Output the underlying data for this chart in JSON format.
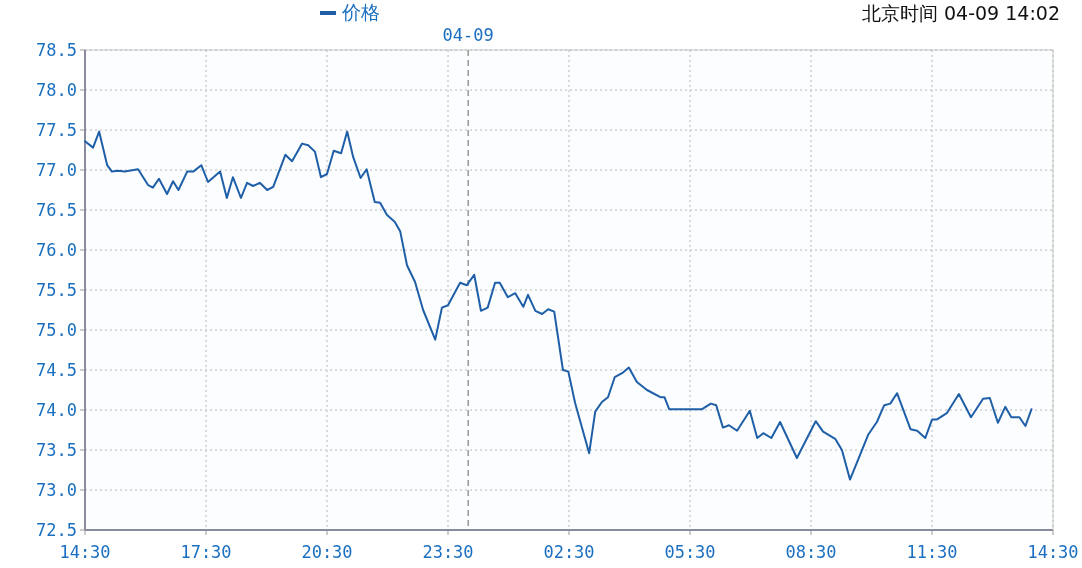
{
  "chart_data": {
    "type": "line",
    "annotations": [
      "北京时间 04-09 14:02"
    ],
    "x": [
      "--04-08T14:30",
      "--04-08T14:42",
      "--04-08T14:51",
      "--04-08T15:03",
      "--04-08T15:10",
      "--04-08T15:19",
      "--04-08T15:29",
      "--04-08T15:49",
      "--04-08T16:04",
      "--04-08T16:11",
      "--04-08T16:20",
      "--04-08T16:32",
      "--04-08T16:41",
      "--04-08T16:49",
      "--04-08T17:02",
      "--04-08T17:11",
      "--04-08T17:23",
      "--04-08T17:33",
      "--04-08T17:51",
      "--04-08T18:01",
      "--04-08T18:10",
      "--04-08T18:22",
      "--04-08T18:31",
      "--04-08T18:40",
      "--04-08T18:50",
      "--04-08T19:01",
      "--04-08T19:10",
      "--04-08T19:28",
      "--04-08T19:38",
      "--04-08T19:53",
      "--04-08T20:02",
      "--04-08T20:12",
      "--04-08T20:21",
      "--04-08T20:30",
      "--04-08T20:40",
      "--04-08T20:51",
      "--04-08T21:00",
      "--04-08T21:09",
      "--04-08T21:20",
      "--04-08T21:29",
      "--04-08T21:41",
      "--04-08T21:49",
      "--04-08T21:59",
      "--04-08T22:11",
      "--04-08T22:19",
      "--04-08T22:29",
      "--04-08T22:41",
      "--04-08T22:53",
      "--04-08T23:11",
      "--04-08T23:21",
      "--04-08T23:30",
      "--04-08T23:48",
      "--04-08T23:58",
      "--04-09T00:09",
      "--04-09T00:19",
      "--04-09T00:29",
      "--04-09T00:40",
      "--04-09T00:47",
      "--04-09T00:59",
      "--04-09T01:10",
      "--04-09T01:22",
      "--04-09T01:29",
      "--04-09T01:40",
      "--04-09T01:50",
      "--04-09T01:59",
      "--04-09T02:08",
      "--04-09T02:21",
      "--04-09T02:29",
      "--04-09T02:39",
      "--04-09T03:00",
      "--04-09T03:09",
      "--04-09T03:19",
      "--04-09T03:28",
      "--04-09T03:38",
      "--04-09T03:49",
      "--04-09T03:59",
      "--04-09T04:11",
      "--04-09T04:26",
      "--04-09T04:46",
      "--04-09T04:52",
      "--04-09T04:59",
      "--04-09T05:48",
      "--04-09T06:01",
      "--04-09T06:09",
      "--04-09T06:19",
      "--04-09T06:28",
      "--04-09T06:40",
      "--04-09T06:59",
      "--04-09T07:10",
      "--04-09T07:19",
      "--04-09T07:31",
      "--04-09T07:44",
      "--04-09T08:09",
      "--04-09T08:37",
      "--04-09T08:48",
      "--04-09T09:06",
      "--04-09T09:16",
      "--04-09T09:28",
      "--04-09T09:43",
      "--04-09T09:55",
      "--04-09T10:08",
      "--04-09T10:19",
      "--04-09T10:28",
      "--04-09T10:38",
      "--04-09T10:58",
      "--04-09T11:08",
      "--04-09T11:20",
      "--04-09T11:30",
      "--04-09T11:37",
      "--04-09T11:52",
      "--04-09T12:10",
      "--04-09T12:28",
      "--04-09T12:46",
      "--04-09T12:56",
      "--04-09T13:08",
      "--04-09T13:19",
      "--04-09T13:28",
      "--04-09T13:40",
      "--04-09T13:49",
      "--04-09T13:58"
    ],
    "series": [
      {
        "name": "价格",
        "color": "#1f5fa8",
        "values": [
          77.36,
          77.28,
          77.48,
          77.06,
          76.98,
          76.99,
          76.98,
          77.01,
          76.81,
          76.78,
          76.89,
          76.7,
          76.86,
          76.75,
          76.98,
          76.98,
          77.06,
          76.85,
          76.98,
          76.65,
          76.91,
          76.65,
          76.84,
          76.8,
          76.84,
          76.75,
          76.79,
          77.19,
          77.11,
          77.33,
          77.31,
          77.23,
          76.91,
          76.95,
          77.24,
          77.21,
          77.48,
          77.16,
          76.9,
          77.01,
          76.6,
          76.59,
          76.44,
          76.35,
          76.23,
          75.81,
          75.6,
          75.25,
          74.88,
          75.28,
          75.31,
          75.59,
          75.56,
          75.69,
          75.24,
          75.28,
          75.59,
          75.59,
          75.41,
          75.46,
          75.29,
          75.44,
          75.24,
          75.2,
          75.26,
          75.23,
          74.5,
          74.48,
          74.09,
          73.46,
          73.98,
          74.1,
          74.16,
          74.41,
          74.46,
          74.53,
          74.35,
          74.25,
          74.16,
          74.16,
          74.01,
          74.01,
          74.08,
          74.06,
          73.78,
          73.81,
          73.74,
          73.99,
          73.65,
          73.71,
          73.65,
          73.85,
          73.4,
          73.86,
          73.73,
          73.64,
          73.5,
          73.13,
          73.44,
          73.69,
          73.85,
          74.06,
          74.08,
          74.21,
          73.76,
          73.74,
          73.65,
          73.88,
          73.88,
          73.96,
          74.2,
          73.91,
          74.14,
          74.15,
          73.84,
          74.04,
          73.91,
          73.91,
          73.8,
          74.01
        ]
      }
    ],
    "xlim": [
      "--04-08T14:30",
      "--04-09T14:30"
    ],
    "xticks": [
      {
        "value": "--04-08T14:30",
        "label": "14:30"
      },
      {
        "value": "--04-08T17:30",
        "label": "17:30"
      },
      {
        "value": "--04-08T20:30",
        "label": "20:30"
      },
      {
        "value": "--04-08T23:30",
        "label": "23:30"
      },
      {
        "value": "--04-09T02:30",
        "label": "02:30"
      },
      {
        "value": "--04-09T05:30",
        "label": "05:30"
      },
      {
        "value": "--04-09T08:30",
        "label": "08:30"
      },
      {
        "value": "--04-09T11:30",
        "label": "11:30"
      },
      {
        "value": "--04-09T14:30",
        "label": "14:30"
      }
    ],
    "ylim": [
      72.5,
      78.5
    ],
    "yticks": [
      {
        "value": 72.5,
        "label": "72.5"
      },
      {
        "value": 73,
        "label": "73.0"
      },
      {
        "value": 73.5,
        "label": "73.5"
      },
      {
        "value": 74,
        "label": "74.0"
      },
      {
        "value": 74.5,
        "label": "74.5"
      },
      {
        "value": 75,
        "label": "75.0"
      },
      {
        "value": 75.5,
        "label": "75.5"
      },
      {
        "value": 76,
        "label": "76.0"
      },
      {
        "value": 76.5,
        "label": "76.5"
      },
      {
        "value": 77,
        "label": "77.0"
      },
      {
        "value": 77.5,
        "label": "77.5"
      },
      {
        "value": 78,
        "label": "78.0"
      },
      {
        "value": 78.5,
        "label": "78.5"
      }
    ],
    "ref_lines": [
      {
        "axis": "x",
        "value": "--04-09",
        "label": "04-09",
        "color": "#888888",
        "line_style": "dashed"
      }
    ],
    "grid": true,
    "legend": "top"
  }
}
